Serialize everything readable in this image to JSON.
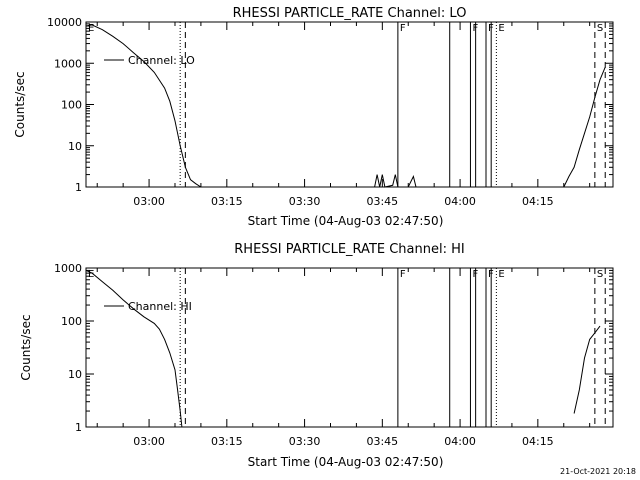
{
  "chart_data": [
    {
      "type": "line",
      "title": "RHESSI PARTICLE_RATE Channel: LO",
      "xlabel": "Start Time (04-Aug-03 02:47:50)",
      "ylabel": "Counts/sec",
      "yscale": "log",
      "ylim": [
        1,
        10000
      ],
      "y_ticks": [
        "1",
        "10",
        "100",
        "1000",
        "10000"
      ],
      "x_ticks": [
        "03:00",
        "03:15",
        "03:30",
        "03:45",
        "04:00",
        "04:15"
      ],
      "xlim": [
        "02:47:50",
        "04:29:30"
      ],
      "legend": "top-left",
      "series": [
        {
          "name": "Channel: LO",
          "points": [
            [
              "02:47:50",
              8000
            ],
            [
              "02:49",
              8500
            ],
            [
              "02:51",
              6500
            ],
            [
              "02:53",
              4500
            ],
            [
              "02:55",
              3000
            ],
            [
              "02:57",
              1800
            ],
            [
              "02:59",
              1100
            ],
            [
              "03:01",
              600
            ],
            [
              "03:03",
              250
            ],
            [
              "03:04",
              120
            ],
            [
              "03:05",
              40
            ],
            [
              "03:06",
              10
            ],
            [
              "03:07",
              3
            ],
            [
              "03:08",
              1.5
            ],
            [
              "03:09",
              1.2
            ],
            [
              "03:10",
              1
            ],
            [
              "03:43:30",
              1
            ],
            [
              "03:44",
              2
            ],
            [
              "03:44:30",
              1
            ],
            [
              "03:45",
              2
            ],
            [
              "03:45:30",
              1
            ],
            [
              "03:47",
              1.1
            ],
            [
              "03:47:30",
              2
            ],
            [
              "03:48",
              1
            ],
            [
              "03:50",
              1
            ],
            [
              "03:51",
              1.8
            ],
            [
              "03:51:30",
              1
            ],
            [
              "04:20",
              1
            ],
            [
              "04:21",
              1.8
            ],
            [
              "04:22",
              3
            ],
            [
              "04:23",
              8
            ],
            [
              "04:24",
              20
            ],
            [
              "04:25",
              50
            ],
            [
              "04:26",
              150
            ],
            [
              "04:27",
              400
            ],
            [
              "04:28",
              800
            ]
          ]
        }
      ],
      "event_markers": [
        {
          "label": "E",
          "time": "02:47:50",
          "style": "solid"
        },
        {
          "label": "",
          "time": "03:06",
          "style": "dotted"
        },
        {
          "label": "",
          "time": "03:07",
          "style": "dashed"
        },
        {
          "label": "F",
          "time": "03:48",
          "style": "solid"
        },
        {
          "label": "",
          "time": "03:58",
          "style": "solid"
        },
        {
          "label": "F",
          "time": "04:02",
          "style": "solid"
        },
        {
          "label": "",
          "time": "04:03",
          "style": "solid"
        },
        {
          "label": "F",
          "time": "04:05",
          "style": "solid"
        },
        {
          "label": "",
          "time": "04:06",
          "style": "solid"
        },
        {
          "label": "E",
          "time": "04:07",
          "style": "dotted"
        },
        {
          "label": "S",
          "time": "04:26",
          "style": "dashed"
        },
        {
          "label": "",
          "time": "04:28",
          "style": "dashed"
        }
      ]
    },
    {
      "type": "line",
      "title": "RHESSI PARTICLE_RATE Channel: HI",
      "xlabel": "Start Time (04-Aug-03 02:47:50)",
      "ylabel": "Counts/sec",
      "yscale": "log",
      "ylim": [
        1,
        1000
      ],
      "y_ticks": [
        "1",
        "10",
        "100",
        "1000"
      ],
      "x_ticks": [
        "03:00",
        "03:15",
        "03:30",
        "03:45",
        "04:00",
        "04:15"
      ],
      "xlim": [
        "02:47:50",
        "04:29:30"
      ],
      "legend": "top-left",
      "series": [
        {
          "name": "Channel: HI",
          "points": [
            [
              "02:47:50",
              900
            ],
            [
              "02:49",
              800
            ],
            [
              "02:51",
              550
            ],
            [
              "02:53",
              380
            ],
            [
              "02:55",
              250
            ],
            [
              "02:57",
              170
            ],
            [
              "02:59",
              120
            ],
            [
              "03:01",
              90
            ],
            [
              "03:02",
              70
            ],
            [
              "03:03",
              45
            ],
            [
              "03:04",
              25
            ],
            [
              "03:05",
              12
            ],
            [
              "03:05:30",
              5
            ],
            [
              "03:06",
              2
            ],
            [
              "03:06:20",
              1
            ],
            [
              "04:22",
              1.8
            ],
            [
              "04:23",
              5
            ],
            [
              "04:24",
              20
            ],
            [
              "04:25",
              45
            ],
            [
              "04:26",
              60
            ],
            [
              "04:27",
              80
            ]
          ]
        }
      ],
      "event_markers": [
        {
          "label": "E",
          "time": "02:47:50",
          "style": "solid"
        },
        {
          "label": "",
          "time": "03:06",
          "style": "dotted"
        },
        {
          "label": "",
          "time": "03:07",
          "style": "dashed"
        },
        {
          "label": "F",
          "time": "03:48",
          "style": "solid"
        },
        {
          "label": "",
          "time": "03:58",
          "style": "solid"
        },
        {
          "label": "F",
          "time": "04:02",
          "style": "solid"
        },
        {
          "label": "",
          "time": "04:03",
          "style": "solid"
        },
        {
          "label": "F",
          "time": "04:05",
          "style": "solid"
        },
        {
          "label": "",
          "time": "04:06",
          "style": "solid"
        },
        {
          "label": "E",
          "time": "04:07",
          "style": "dotted"
        },
        {
          "label": "S",
          "time": "04:26",
          "style": "dashed"
        },
        {
          "label": "",
          "time": "04:28",
          "style": "dashed"
        }
      ]
    }
  ],
  "footer": {
    "timestamp": "21-Oct-2021 20:18"
  }
}
